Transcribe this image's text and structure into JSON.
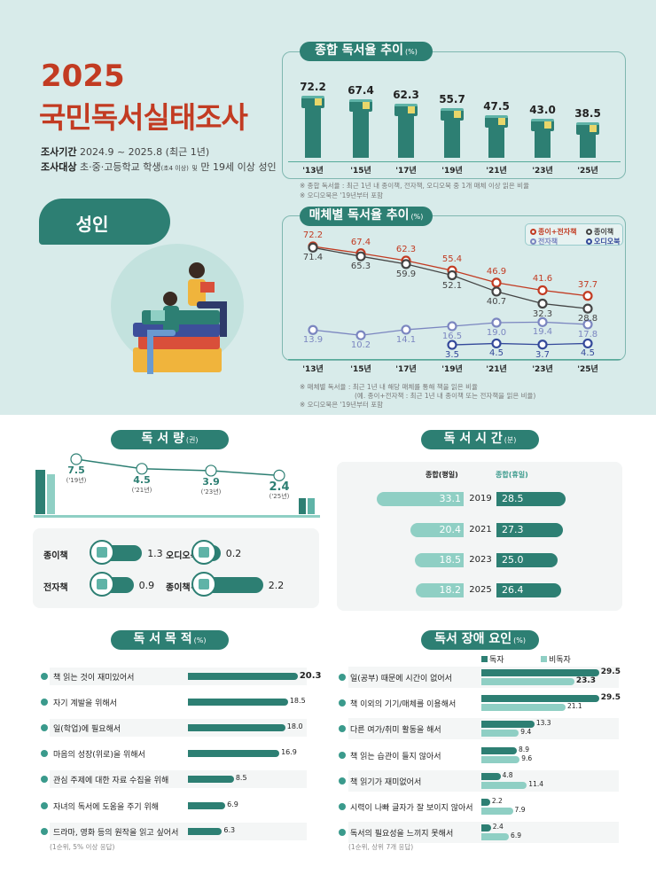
{
  "header": {
    "year": "2025",
    "title": "국민독서실태조사",
    "period_label": "조사기간",
    "period": "2024.9 ~ 2025.8 (최근 1년)",
    "target_label": "조사대상",
    "target_a": "초·중·고등학교 학생",
    "target_b": "(초4 이상)",
    "target_c": "및",
    "target_d": "만 19세 이상 성인"
  },
  "badge": "성인",
  "colors": {
    "teal": "#2d7f73",
    "light_teal": "#8fcfc4",
    "red": "#c23b22",
    "paper": "#444444",
    "ebook": "#7b86c0",
    "audio": "#34499a"
  },
  "chart_data": [
    {
      "type": "bar",
      "title": "종합 독서율 추이",
      "unit": "(%)",
      "categories": [
        "'13년",
        "'15년",
        "'17년",
        "'19년",
        "'21년",
        "'23년",
        "'25년"
      ],
      "values": [
        72.2,
        67.4,
        62.3,
        55.7,
        47.5,
        43.0,
        38.5
      ],
      "labels": [
        "72.2",
        "67.4",
        "62.3",
        "55.7",
        "47.5",
        "43.0",
        "38.5"
      ],
      "notes": [
        "※ 종합 독서율 : 최근 1년 내 종이책, 전자책, 오디오북 중 1개 매체 이상 읽은 비율",
        "※ 오디오북은 '19년부터 포함"
      ]
    },
    {
      "type": "line",
      "title": "매체별 독서율 추이",
      "unit": "(%)",
      "categories": [
        "'13년",
        "'15년",
        "'17년",
        "'19년",
        "'21년",
        "'23년",
        "'25년"
      ],
      "series": [
        {
          "name": "종이+전자책",
          "color": "#c23b22",
          "values": [
            72.2,
            67.4,
            62.3,
            55.4,
            46.9,
            41.6,
            37.7
          ],
          "labels": [
            "72.2",
            "67.4",
            "62.3",
            "55.4",
            "46.9",
            "41.6",
            "37.7"
          ],
          "label_pos": "above"
        },
        {
          "name": "종이책",
          "color": "#444444",
          "values": [
            71.4,
            65.3,
            59.9,
            52.1,
            40.7,
            32.3,
            28.8
          ],
          "labels": [
            "71.4",
            "65.3",
            "59.9",
            "52.1",
            "40.7",
            "32.3",
            "28.8"
          ],
          "label_pos": "below"
        },
        {
          "name": "전자책",
          "color": "#7b86c0",
          "values": [
            13.9,
            10.2,
            14.1,
            16.5,
            19.0,
            19.4,
            17.8
          ],
          "labels": [
            "13.9",
            "10.2",
            "14.1",
            "16.5",
            "19.0",
            "19.4",
            "17.8"
          ],
          "label_pos": "below"
        },
        {
          "name": "오디오북",
          "color": "#34499a",
          "values": [
            null,
            null,
            null,
            3.5,
            4.5,
            3.7,
            4.5
          ],
          "labels": [
            "",
            "",
            "",
            "3.5",
            "4.5",
            "3.7",
            "4.5"
          ],
          "label_pos": "below"
        }
      ],
      "notes": [
        "※ 매체별 독서율 : 최근 1년 내 해당 매체를 통해 책을 읽은 비율",
        "(예. 종이+전자책 : 최근 1년 내 종이책 또는 전자책을 읽은 비율)",
        "※ 오디오북은 '19년부터 포함"
      ]
    },
    {
      "type": "line",
      "title": "독 서 량",
      "unit": "(권)",
      "categories": [
        "('19년)",
        "('21년)",
        "('23년)",
        "('25년)"
      ],
      "values": [
        7.5,
        4.5,
        3.9,
        2.4
      ],
      "labels": [
        "7.5",
        "4.5",
        "3.9",
        "2.4"
      ],
      "breakdown": [
        {
          "name": "종이책",
          "value": "1.3",
          "v": 1.3
        },
        {
          "name": "오디오북",
          "value": "0.2",
          "v": 0.2
        },
        {
          "name": "전자책",
          "value": "0.9",
          "v": 0.9
        },
        {
          "name": "종이책+전자책",
          "value": "2.2",
          "v": 2.2
        }
      ]
    },
    {
      "type": "bar",
      "title": "독 서 시 간",
      "unit": "(분)",
      "left_header": "종합(평일)",
      "right_header": "종합(휴일)",
      "categories": [
        "2019",
        "2021",
        "2023",
        "2025"
      ],
      "series": [
        {
          "name": "종합(평일)",
          "values": [
            33.1,
            20.4,
            18.5,
            18.2
          ],
          "labels": [
            "33.1",
            "20.4",
            "18.5",
            "18.2"
          ]
        },
        {
          "name": "종합(휴일)",
          "values": [
            28.5,
            27.3,
            25.0,
            26.4
          ],
          "labels": [
            "28.5",
            "27.3",
            "25.0",
            "26.4"
          ]
        }
      ]
    },
    {
      "type": "bar",
      "title": "독 서 목 적",
      "unit": "(%)",
      "categories": [
        "책 읽는 것이 재미있어서",
        "자기 계발을 위해서",
        "일(학업)에 필요해서",
        "마음의 성장(위로)을 위해서",
        "관심 주제에 대한 자료 수집을 위해",
        "자녀의 독서에 도움을 주기 위해",
        "드라마, 영화 등의 원작을 읽고 싶어서"
      ],
      "values": [
        20.3,
        18.5,
        18.0,
        16.9,
        8.5,
        6.9,
        6.3
      ],
      "labels": [
        "20.3",
        "18.5",
        "18.0",
        "16.9",
        "8.5",
        "6.9",
        "6.3"
      ],
      "note": "(1순위, 5% 이상 응답)"
    },
    {
      "type": "bar",
      "title": "독서 장애 요인",
      "unit": "(%)",
      "categories": [
        "일(공부) 때문에 시간이 없어서",
        "책 이외의 기기/매체를 이용해서",
        "다른 여가/취미 활동을 해서",
        "책 읽는 습관이 들지 않아서",
        "책 읽기가 재미없어서",
        "시력이 나빠 글자가 잘 보이지 않아서",
        "독서의 필요성을 느끼지 못해서"
      ],
      "series": [
        {
          "name": "독자",
          "values": [
            29.5,
            29.5,
            13.3,
            8.9,
            4.8,
            2.2,
            2.4
          ],
          "labels": [
            "29.5",
            "29.5",
            "13.3",
            "8.9",
            "4.8",
            "2.2",
            "2.4"
          ]
        },
        {
          "name": "비독자",
          "values": [
            23.3,
            21.1,
            9.4,
            9.6,
            11.4,
            7.9,
            6.9
          ],
          "labels": [
            "23.3",
            "21.1",
            "9.4",
            "9.6",
            "11.4",
            "7.9",
            "6.9"
          ]
        }
      ],
      "note": "(1순위, 상위 7개 응답)"
    }
  ]
}
